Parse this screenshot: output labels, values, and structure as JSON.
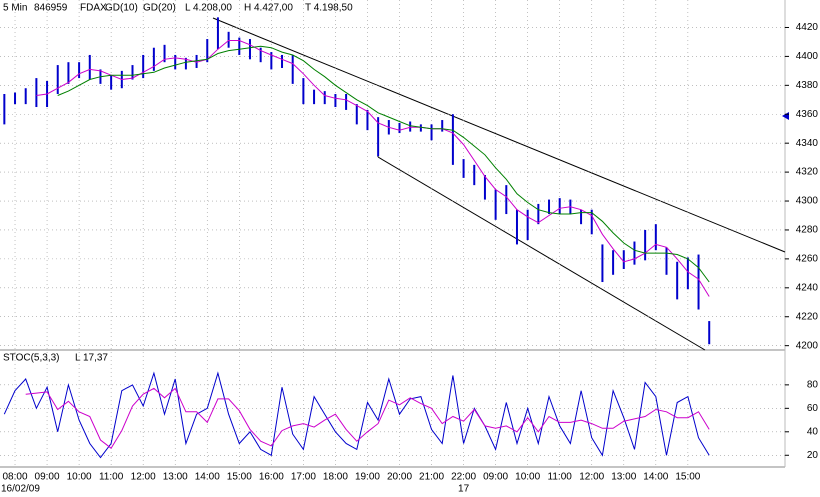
{
  "chart_data": [
    {
      "type": "hilo",
      "interval": "5 Min",
      "code": "846959",
      "symbol": "FDAX",
      "stats": [
        "L  4.208,00",
        "H  4.427,00",
        "T  4.198,50"
      ],
      "color": "#0000cc",
      "categories": [
        null,
        "08:00",
        null,
        null,
        "09:00",
        null,
        null,
        "10:00",
        null,
        null,
        "11:00",
        null,
        null,
        "12:00",
        null,
        null,
        "13:00",
        null,
        null,
        "14:00",
        null,
        null,
        "15:00",
        null,
        null,
        "16:00",
        null,
        null,
        "17:00",
        null,
        null,
        "18:00",
        null,
        null,
        "19:00",
        null,
        null,
        "20:00",
        null,
        null,
        "21:00",
        null,
        null,
        "22:00",
        null,
        null,
        "09:00",
        null,
        null,
        "10:00",
        null,
        null,
        "11:00",
        null,
        null,
        "12:00",
        null,
        null,
        "13:00",
        null,
        null,
        "14:00",
        null,
        null,
        "15:00",
        null,
        null
      ],
      "date_labels": [
        null,
        "16/02/09",
        null,
        null,
        null,
        null,
        null,
        null,
        null,
        null,
        null,
        null,
        null,
        null,
        null,
        null,
        null,
        null,
        null,
        null,
        null,
        null,
        null,
        null,
        null,
        null,
        null,
        null,
        null,
        null,
        null,
        null,
        null,
        null,
        null,
        null,
        null,
        null,
        null,
        null,
        null,
        null,
        null,
        "17",
        null,
        null,
        null,
        null,
        null,
        null,
        null,
        null,
        null,
        null,
        null,
        null,
        null,
        null,
        null,
        null,
        null,
        null,
        null,
        null,
        null,
        null,
        null
      ],
      "high": [
        4374,
        4375,
        4378,
        4385,
        4383,
        4394,
        4396,
        4396,
        4401,
        4391,
        4387,
        4390,
        4394,
        4401,
        4406,
        4408,
        4401,
        4399,
        4401,
        4412,
        4427,
        4417,
        4413,
        4412,
        4406,
        4403,
        4401,
        4401,
        4385,
        4377,
        4376,
        4374,
        4374,
        4367,
        4363,
        4358,
        4356,
        4354,
        4355,
        4353,
        4353,
        4356,
        4360,
        4329,
        4325,
        4318,
        4308,
        4311,
        4294,
        4294,
        4298,
        4301,
        4302,
        4301,
        4294,
        4294,
        4270,
        4266,
        4266,
        4272,
        4280,
        4284,
        4268,
        4258,
        4261,
        4263,
        4217
      ],
      "low": [
        4353,
        4367,
        4367,
        4365,
        4365,
        4374,
        4381,
        4385,
        4384,
        4381,
        4377,
        4378,
        4384,
        4385,
        4390,
        4396,
        4391,
        4391,
        4392,
        4396,
        4405,
        4406,
        4401,
        4398,
        4396,
        4391,
        4392,
        4381,
        4367,
        4367,
        4367,
        4365,
        4363,
        4353,
        4349,
        4331,
        4346,
        4347,
        4348,
        4348,
        4342,
        4348,
        4325,
        4316,
        4311,
        4301,
        4287,
        4291,
        4270,
        4273,
        4284,
        4291,
        4291,
        4291,
        4284,
        4277,
        4244,
        4249,
        4253,
        4256,
        4259,
        4266,
        4249,
        4232,
        4239,
        4225,
        4201
      ],
      "series": [
        {
          "name": "GD(10)",
          "color": "#cc00cc",
          "values": [
            null,
            null,
            null,
            4373,
            4374,
            4378,
            4382,
            4388,
            4391,
            4390,
            4387,
            4384,
            4385,
            4389,
            4393,
            4398,
            4399,
            4398,
            4396,
            4398,
            4405,
            4411,
            4411,
            4408,
            4404,
            4401,
            4398,
            4395,
            4388,
            4380,
            4373,
            4371,
            4370,
            4366,
            4362,
            4354,
            4351,
            4349,
            4351,
            4351,
            4350,
            4350,
            4347,
            4339,
            4328,
            4317,
            4308,
            4303,
            4294,
            4289,
            4285,
            4290,
            4295,
            4296,
            4294,
            4290,
            4277,
            4267,
            4258,
            4260,
            4264,
            4270,
            4268,
            4260,
            4251,
            4246,
            4234
          ]
        },
        {
          "name": "GD(20)",
          "color": "#008000",
          "values": [
            null,
            null,
            null,
            null,
            null,
            4373,
            4376,
            4380,
            4384,
            4386,
            4387,
            4387,
            4387,
            4388,
            4389,
            4392,
            4394,
            4396,
            4397,
            4398,
            4402,
            4404,
            4405,
            4406,
            4407,
            4406,
            4403,
            4401,
            4397,
            4391,
            4386,
            4380,
            4375,
            4370,
            4366,
            4361,
            4358,
            4355,
            4352,
            4351,
            4350,
            4350,
            4349,
            4344,
            4338,
            4332,
            4323,
            4315,
            4305,
            4299,
            4294,
            4292,
            4291,
            4291,
            4292,
            4292,
            4286,
            4278,
            4271,
            4266,
            4264,
            4264,
            4264,
            4263,
            4260,
            4254,
            4244
          ]
        }
      ],
      "ylim": [
        4197,
        4439
      ],
      "yticks": [
        4200,
        4220,
        4240,
        4260,
        4280,
        4300,
        4320,
        4340,
        4360,
        4380,
        4400,
        4420
      ],
      "grid": true
    },
    {
      "type": "line",
      "title": "STOC(5,3,3)",
      "stat": "L  17,37",
      "series": [
        {
          "color": "#0000cc",
          "values": [
            55,
            75,
            85,
            60,
            78,
            40,
            80,
            50,
            30,
            18,
            30,
            75,
            80,
            62,
            90,
            55,
            85,
            30,
            55,
            60,
            90,
            55,
            30,
            40,
            25,
            20,
            78,
            38,
            25,
            70,
            55,
            40,
            30,
            25,
            65,
            50,
            85,
            55,
            68,
            70,
            42,
            30,
            88,
            30,
            60,
            45,
            25,
            65,
            30,
            60,
            30,
            70,
            45,
            30,
            75,
            35,
            20,
            75,
            52,
            25,
            82,
            70,
            20,
            65,
            70,
            35,
            20
          ]
        },
        {
          "color": "#cc00cc",
          "values": [
            null,
            null,
            72,
            73,
            74,
            59,
            66,
            57,
            53,
            33,
            26,
            41,
            62,
            72,
            77,
            69,
            77,
            57,
            57,
            48,
            68,
            68,
            58,
            42,
            32,
            28,
            41,
            45,
            47,
            44,
            50,
            55,
            42,
            32,
            40,
            47,
            67,
            63,
            69,
            64,
            60,
            47,
            53,
            49,
            59,
            45,
            43,
            45,
            40,
            52,
            40,
            53,
            48,
            48,
            50,
            47,
            43,
            43,
            49,
            51,
            53,
            59,
            57,
            52,
            52,
            57,
            42
          ]
        }
      ],
      "ylim": [
        10,
        108
      ],
      "yticks": [
        20,
        40,
        60,
        80
      ],
      "grid": true
    }
  ]
}
